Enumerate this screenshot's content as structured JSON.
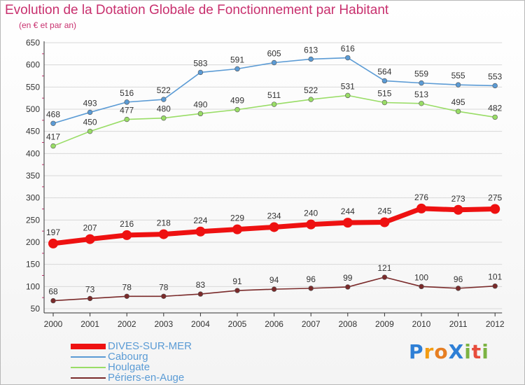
{
  "header": {
    "title": "Evolution de la Dotation Globale de Fonctionnement par Habitant",
    "subtitle": "(en € et par an)"
  },
  "logo": {
    "text": "ProXiti",
    "letters": [
      {
        "char": "P",
        "color": "#2e7fd6"
      },
      {
        "char": "r",
        "color": "#f39c12"
      },
      {
        "char": "o",
        "color": "#e67e22"
      },
      {
        "char": "X",
        "color": "#2e7fd6"
      },
      {
        "char": "i",
        "color": "#7cb342"
      },
      {
        "char": "t",
        "color": "#e74c3c"
      },
      {
        "char": "i",
        "color": "#7cb342"
      }
    ]
  },
  "colors": {
    "title": "#c8306e",
    "axis": "#333333",
    "grid": "#d8d8d8",
    "minor_tick": "#c8306e"
  },
  "chart_data": {
    "type": "line",
    "x": [
      "2000",
      "2001",
      "2002",
      "2003",
      "2004",
      "2005",
      "2006",
      "2007",
      "2008",
      "2009",
      "2010",
      "2011",
      "2012"
    ],
    "ylim": [
      50,
      650
    ],
    "yticks": [
      50,
      100,
      150,
      200,
      250,
      300,
      350,
      400,
      450,
      500,
      550,
      600,
      650
    ],
    "grid": true,
    "legend_position": "bottom-left",
    "series": [
      {
        "name": "DIVES-SUR-MER",
        "color": "#ee1111",
        "emphasis": true,
        "values": [
          197,
          207,
          216,
          218,
          224,
          229,
          234,
          240,
          244,
          245,
          276,
          273,
          275
        ]
      },
      {
        "name": "Cabourg",
        "color": "#5b9bd5",
        "emphasis": false,
        "values": [
          468,
          493,
          516,
          522,
          583,
          591,
          605,
          613,
          616,
          564,
          559,
          555,
          553
        ]
      },
      {
        "name": "Houlgate",
        "color": "#99dd66",
        "emphasis": false,
        "values": [
          417,
          450,
          477,
          480,
          490,
          499,
          511,
          522,
          531,
          515,
          513,
          495,
          482
        ]
      },
      {
        "name": "Périers-en-Auge",
        "color": "#7a2a2a",
        "emphasis": false,
        "values": [
          68,
          73,
          78,
          78,
          83,
          91,
          94,
          96,
          99,
          121,
          100,
          96,
          101
        ]
      }
    ]
  }
}
